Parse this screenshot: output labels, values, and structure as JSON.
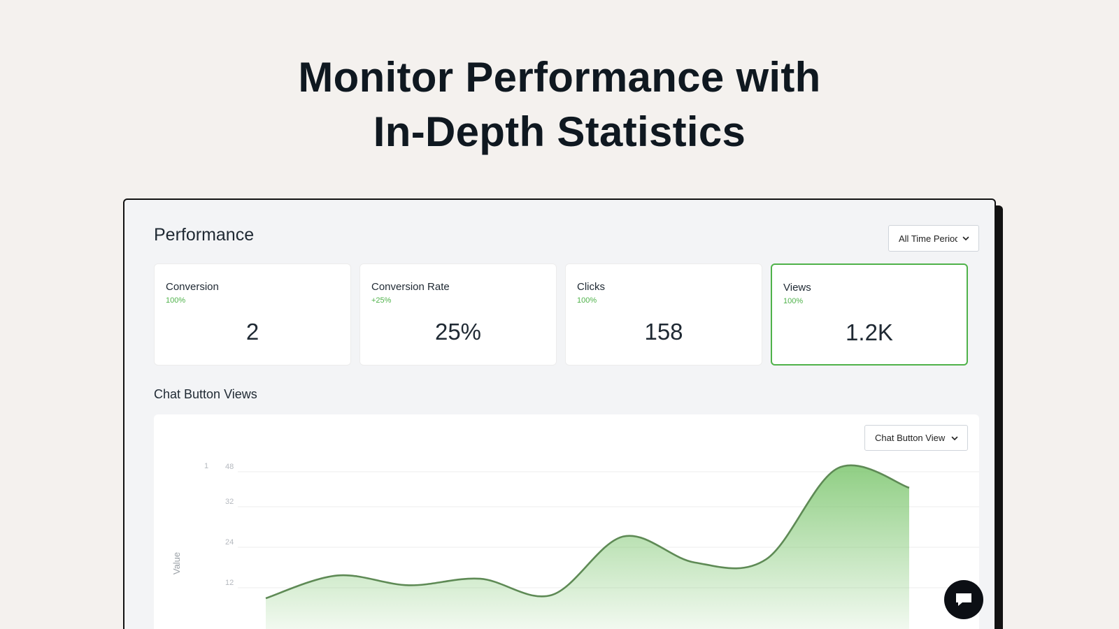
{
  "hero": {
    "line1": "Monitor Performance with",
    "line2": "In-Depth Statistics"
  },
  "panel": {
    "title": "Performance",
    "period_select": {
      "value": "All Time Period"
    }
  },
  "stats": [
    {
      "label": "Conversion",
      "delta": "100%",
      "value": "2"
    },
    {
      "label": "Conversion Rate",
      "delta": "+25%",
      "value": "25%"
    },
    {
      "label": "Clicks",
      "delta": "100%",
      "value": "158"
    },
    {
      "label": "Views",
      "delta": "100%",
      "value": "1.2K",
      "active": true
    }
  ],
  "section": {
    "title": "Chat Button Views"
  },
  "chart_select": {
    "value": "Chat Button View"
  },
  "chart_data": {
    "type": "area",
    "ylabel": "Value",
    "extra_tick_label": "1",
    "yticks": [
      "48",
      "32",
      "24",
      "12"
    ],
    "grid": true,
    "legend": "none",
    "series": [
      {
        "values": [
          10,
          17,
          14,
          16,
          11,
          29,
          21,
          22,
          50,
          44
        ]
      }
    ],
    "color": "#5e8a55",
    "fill_color": "#7cc66e"
  },
  "fab": {
    "icon": "chat-bubble-icon"
  }
}
